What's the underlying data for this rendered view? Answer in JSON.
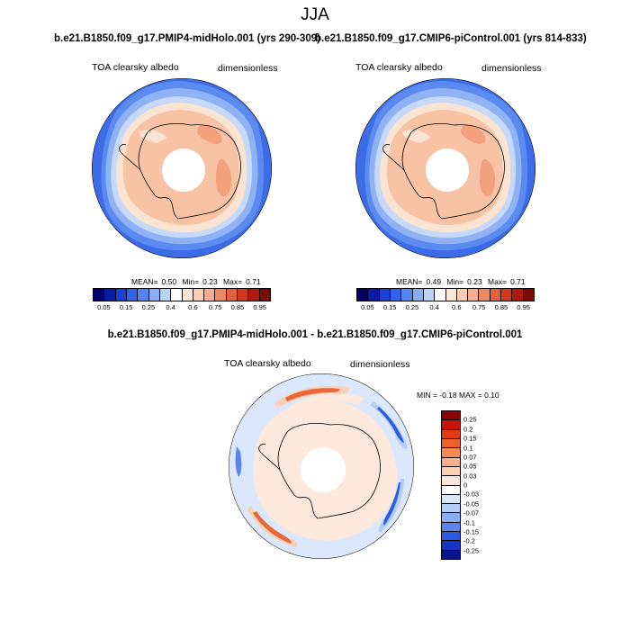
{
  "season": "JJA",
  "panels": {
    "left": {
      "title": "b.e21.B1850.f09_g17.PMIP4-midHolo.001 (yrs 290-309)",
      "variable": "TOA clearsky albedo",
      "units": "dimensionless",
      "mean_label": "MEAN=",
      "mean": "0.50",
      "min_label": "Min=",
      "min": "0.23",
      "max_label": "Max=",
      "max": "0.71"
    },
    "right": {
      "title": "b.e21.B1850.f09_g17.CMIP6-piControl.001 (yrs 814-833)",
      "variable": "TOA clearsky albedo",
      "units": "dimensionless",
      "mean_label": "MEAN=",
      "mean": "0.49",
      "min_label": "Min=",
      "min": "0.23",
      "max_label": "Max=",
      "max": "0.71"
    },
    "diff": {
      "title": "b.e21.B1850.f09_g17.PMIP4-midHolo.001 - b.e21.B1850.f09_g17.CMIP6-piControl.001",
      "variable": "TOA clearsky albedo",
      "units": "dimensionless",
      "minmax": "MIN =  -0.18 MAX =   0.10"
    }
  },
  "colorbar_abs": {
    "colors": [
      "#06006b",
      "#0c1aa8",
      "#1a3ed6",
      "#2e63ee",
      "#5485f2",
      "#8aadf6",
      "#bcd3f8",
      "#ffffff",
      "#fde6d5",
      "#fccdb5",
      "#f8ad8f",
      "#f08862",
      "#e6603d",
      "#d2391f",
      "#b01a0e",
      "#7c0a03"
    ],
    "labels": [
      "0.05",
      "0.15",
      "0.25",
      "0.4",
      "0.6",
      "0.75",
      "0.85",
      "0.95"
    ]
  },
  "colorbar_diff": {
    "colors": [
      "#8c0504",
      "#c81306",
      "#e23a14",
      "#f0602b",
      "#f58a52",
      "#f9b08a",
      "#fbd1b5",
      "#fde9dc",
      "#ffffff",
      "#d6e6fb",
      "#b2cdf8",
      "#89aef3",
      "#5b86ed",
      "#2d5ae2",
      "#1435c4",
      "#09138f"
    ],
    "labels": [
      "0.25",
      "0.2",
      "0.15",
      "0.1",
      "0.07",
      "0.05",
      "0.03",
      "0",
      "-0.03",
      "-0.05",
      "-0.07",
      "-0.1",
      "-0.15",
      "-0.2",
      "-0.25"
    ]
  }
}
